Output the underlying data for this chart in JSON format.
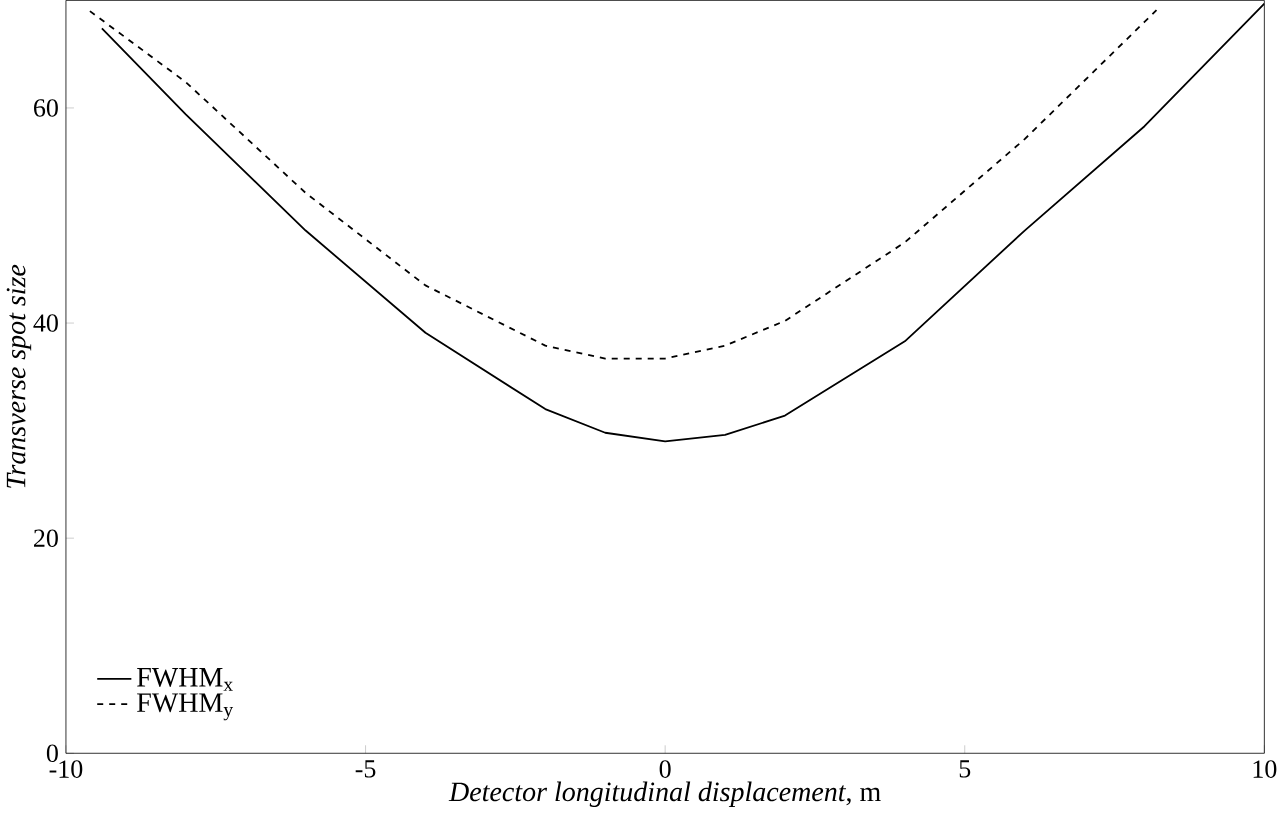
{
  "chart_data": {
    "type": "line",
    "xlabel": "*Detector longitudinal displacement*, m",
    "ylabel": "Transverse spot size",
    "xlim": [
      -10,
      10
    ],
    "ylim": [
      0,
      70
    ],
    "xticks": [
      -10,
      -5,
      0,
      5,
      10
    ],
    "yticks": [
      0,
      20,
      40,
      60
    ],
    "legend": "bottom left",
    "marker": "none",
    "series": [
      {
        "name": "FWHM$_{x}$",
        "color": "#000000",
        "line_style": "solid",
        "x": [
          -9.4,
          -8,
          -6,
          -4,
          -2,
          -1,
          0,
          1,
          2,
          4,
          6,
          8,
          10
        ],
        "values": [
          67.4,
          59.4,
          48.6,
          39.1,
          32.0,
          29.8,
          29.0,
          29.6,
          31.4,
          38.3,
          48.6,
          58.3,
          69.7
        ]
      },
      {
        "name": "FWHM$_{y}$",
        "color": "#000000",
        "line_style": "dashed",
        "x": [
          -9.6,
          -8,
          -6,
          -4,
          -2,
          -1,
          0,
          1,
          2,
          4,
          6,
          8,
          8.2
        ],
        "values": [
          69,
          62.4,
          52.1,
          43.5,
          37.9,
          36.7,
          36.7,
          37.9,
          40.2,
          47.5,
          57.1,
          68.0,
          69.1
        ]
      }
    ]
  }
}
